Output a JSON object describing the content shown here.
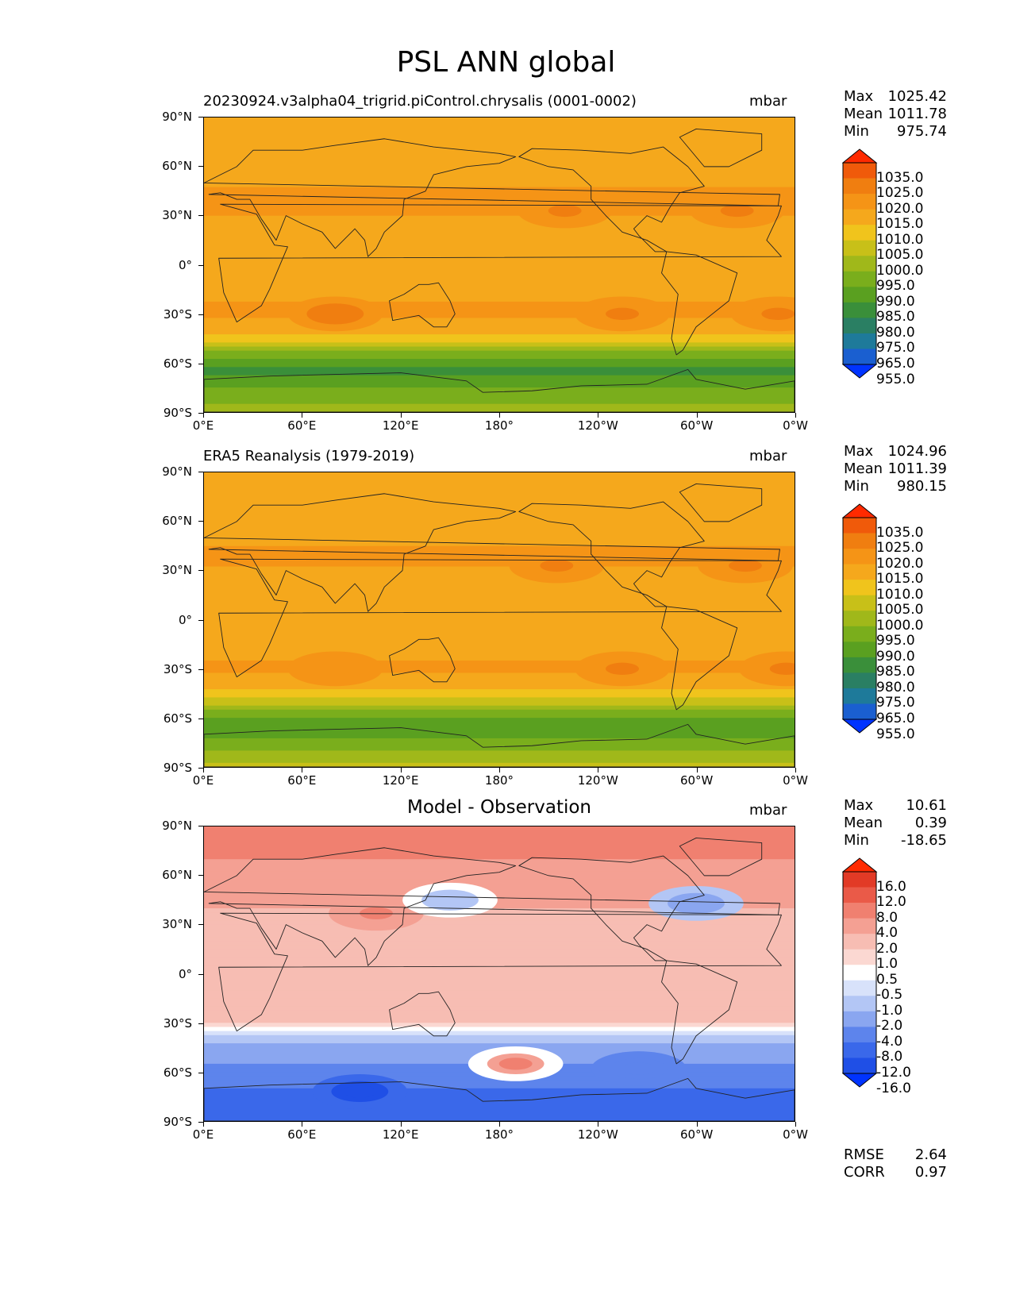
{
  "title": "PSL ANN global",
  "axes": {
    "y_ticks": [
      "90°N",
      "60°N",
      "30°N",
      "0°",
      "30°S",
      "60°S",
      "90°S"
    ],
    "x_ticks": [
      "0°E",
      "60°E",
      "120°E",
      "180°",
      "120°W",
      "60°W",
      "0°W"
    ]
  },
  "panels": [
    {
      "title": "20230924.v3alpha04_trigrid.piControl.chrysalis (0001-0002)",
      "units": "mbar",
      "stats": {
        "max_label": "Max",
        "max": "1025.42",
        "mean_label": "Mean",
        "mean": "1011.78",
        "min_label": "Min",
        "min": "975.74"
      },
      "colorbar_labels": [
        "1035.0",
        "1025.0",
        "1020.0",
        "1015.0",
        "1010.0",
        "1005.0",
        "1000.0",
        "995.0",
        "990.0",
        "985.0",
        "980.0",
        "975.0",
        "965.0",
        "955.0"
      ]
    },
    {
      "title": "ERA5 Reanalysis (1979-2019)",
      "units": "mbar",
      "stats": {
        "max_label": "Max",
        "max": "1024.96",
        "mean_label": "Mean",
        "mean": "1011.39",
        "min_label": "Min",
        "min": "980.15"
      },
      "colorbar_labels": [
        "1035.0",
        "1025.0",
        "1020.0",
        "1015.0",
        "1010.0",
        "1005.0",
        "1000.0",
        "995.0",
        "990.0",
        "985.0",
        "980.0",
        "975.0",
        "965.0",
        "955.0"
      ]
    },
    {
      "title": "Model - Observation",
      "units": "mbar",
      "stats": {
        "max_label": "Max",
        "max": "10.61",
        "mean_label": "Mean",
        "mean": "0.39",
        "min_label": "Min",
        "min": "-18.65"
      },
      "colorbar_labels": [
        "16.0",
        "12.0",
        "8.0",
        "4.0",
        "2.0",
        "1.0",
        "0.5",
        "-0.5",
        "-1.0",
        "-2.0",
        "-4.0",
        "-8.0",
        "-12.0",
        "-16.0"
      ],
      "metrics": {
        "rmse_label": "RMSE",
        "rmse": "2.64",
        "corr_label": "CORR",
        "corr": "0.97"
      }
    }
  ],
  "chart_data": [
    {
      "type": "heatmap",
      "title": "20230924.v3alpha04_trigrid.piControl.chrysalis (0001-0002)",
      "units": "mbar",
      "xlim": [
        0,
        360
      ],
      "ylim": [
        -90,
        90
      ],
      "summary": {
        "max": 1025.42,
        "mean": 1011.78,
        "min": 975.74
      },
      "contour_levels": [
        955,
        965,
        975,
        980,
        985,
        990,
        995,
        1000,
        1005,
        1010,
        1015,
        1020,
        1025,
        1035
      ],
      "colors": [
        "#0033ff",
        "#1a5fd0",
        "#1e7a9a",
        "#2a7f63",
        "#3a8f3a",
        "#5aa020",
        "#7aae1c",
        "#a0b81a",
        "#c8c018",
        "#f0c41c",
        "#f5a81c",
        "#f59416",
        "#f07e10",
        "#f05a0a",
        "#ff2a00"
      ],
      "zonal_profile": [
        {
          "lat": 90,
          "value": 1014
        },
        {
          "lat": 75,
          "value": 1015
        },
        {
          "lat": 60,
          "value": 1012
        },
        {
          "lat": 40,
          "value": 1017
        },
        {
          "lat": 20,
          "value": 1013
        },
        {
          "lat": 0,
          "value": 1011
        },
        {
          "lat": -20,
          "value": 1014
        },
        {
          "lat": -30,
          "value": 1017
        },
        {
          "lat": -45,
          "value": 1008
        },
        {
          "lat": -55,
          "value": 992
        },
        {
          "lat": -65,
          "value": 982
        },
        {
          "lat": -75,
          "value": 990
        },
        {
          "lat": -90,
          "value": 998
        }
      ],
      "highs": [
        {
          "lon": 220,
          "lat": 33,
          "value": 1021
        },
        {
          "lon": 325,
          "lat": 33,
          "value": 1021
        },
        {
          "lon": 80,
          "lat": -30,
          "value": 1022
        },
        {
          "lon": 255,
          "lat": -30,
          "value": 1020
        },
        {
          "lon": 350,
          "lat": -30,
          "value": 1020
        }
      ]
    },
    {
      "type": "heatmap",
      "title": "ERA5 Reanalysis (1979-2019)",
      "units": "mbar",
      "xlim": [
        0,
        360
      ],
      "ylim": [
        -90,
        90
      ],
      "summary": {
        "max": 1024.96,
        "mean": 1011.39,
        "min": 980.15
      },
      "contour_levels": [
        955,
        965,
        975,
        980,
        985,
        990,
        995,
        1000,
        1005,
        1010,
        1015,
        1020,
        1025,
        1035
      ],
      "colors": [
        "#0033ff",
        "#1a5fd0",
        "#1e7a9a",
        "#2a7f63",
        "#3a8f3a",
        "#5aa020",
        "#7aae1c",
        "#a0b81a",
        "#c8c018",
        "#f0c41c",
        "#f5a81c",
        "#f59416",
        "#f07e10",
        "#f05a0a",
        "#ff2a00"
      ],
      "zonal_profile": [
        {
          "lat": 90,
          "value": 1012
        },
        {
          "lat": 75,
          "value": 1013
        },
        {
          "lat": 60,
          "value": 1011
        },
        {
          "lat": 40,
          "value": 1016
        },
        {
          "lat": 20,
          "value": 1013
        },
        {
          "lat": 0,
          "value": 1011
        },
        {
          "lat": -20,
          "value": 1014
        },
        {
          "lat": -30,
          "value": 1016
        },
        {
          "lat": -45,
          "value": 1009
        },
        {
          "lat": -55,
          "value": 995
        },
        {
          "lat": -65,
          "value": 986
        },
        {
          "lat": -75,
          "value": 992
        },
        {
          "lat": -90,
          "value": 1002
        }
      ],
      "highs": [
        {
          "lon": 215,
          "lat": 33,
          "value": 1021
        },
        {
          "lon": 330,
          "lat": 33,
          "value": 1021
        },
        {
          "lon": 80,
          "lat": -30,
          "value": 1019
        },
        {
          "lon": 255,
          "lat": -30,
          "value": 1020
        },
        {
          "lon": 355,
          "lat": -30,
          "value": 1020
        }
      ]
    },
    {
      "type": "heatmap",
      "title": "Model - Observation",
      "units": "mbar",
      "xlim": [
        0,
        360
      ],
      "ylim": [
        -90,
        90
      ],
      "summary": {
        "max": 10.61,
        "mean": 0.39,
        "min": -18.65,
        "rmse": 2.64,
        "corr": 0.97
      },
      "contour_levels": [
        -16,
        -12,
        -8,
        -4,
        -2,
        -1,
        -0.5,
        0.5,
        1,
        2,
        4,
        8,
        12,
        16
      ],
      "colors": [
        "#0033ff",
        "#1f4fe6",
        "#3a68ea",
        "#5d84ec",
        "#8aa6f0",
        "#b3c6f5",
        "#d8e2fa",
        "#ffffff",
        "#fbd8d2",
        "#f7bdb3",
        "#f4a093",
        "#f08070",
        "#ea5a48",
        "#e23a26",
        "#ff2a00"
      ],
      "zonal_profile": [
        {
          "lat": 90,
          "value": 6
        },
        {
          "lat": 75,
          "value": 5
        },
        {
          "lat": 60,
          "value": 2
        },
        {
          "lat": 40,
          "value": 2
        },
        {
          "lat": 20,
          "value": 1.5
        },
        {
          "lat": 0,
          "value": 1
        },
        {
          "lat": -20,
          "value": 2
        },
        {
          "lat": -30,
          "value": 1
        },
        {
          "lat": -45,
          "value": -3
        },
        {
          "lat": -55,
          "value": -4
        },
        {
          "lat": -65,
          "value": -5
        },
        {
          "lat": -75,
          "value": -10
        },
        {
          "lat": -90,
          "value": -12
        }
      ],
      "anomalies": [
        {
          "lon": 105,
          "lat": 37,
          "value": 4
        },
        {
          "lon": 150,
          "lat": 45,
          "value": -2
        },
        {
          "lon": 300,
          "lat": 43,
          "value": -4
        },
        {
          "lon": 190,
          "lat": -55,
          "value": 4
        },
        {
          "lon": 265,
          "lat": -58,
          "value": -8
        },
        {
          "lon": 95,
          "lat": -72,
          "value": -14
        }
      ]
    }
  ]
}
